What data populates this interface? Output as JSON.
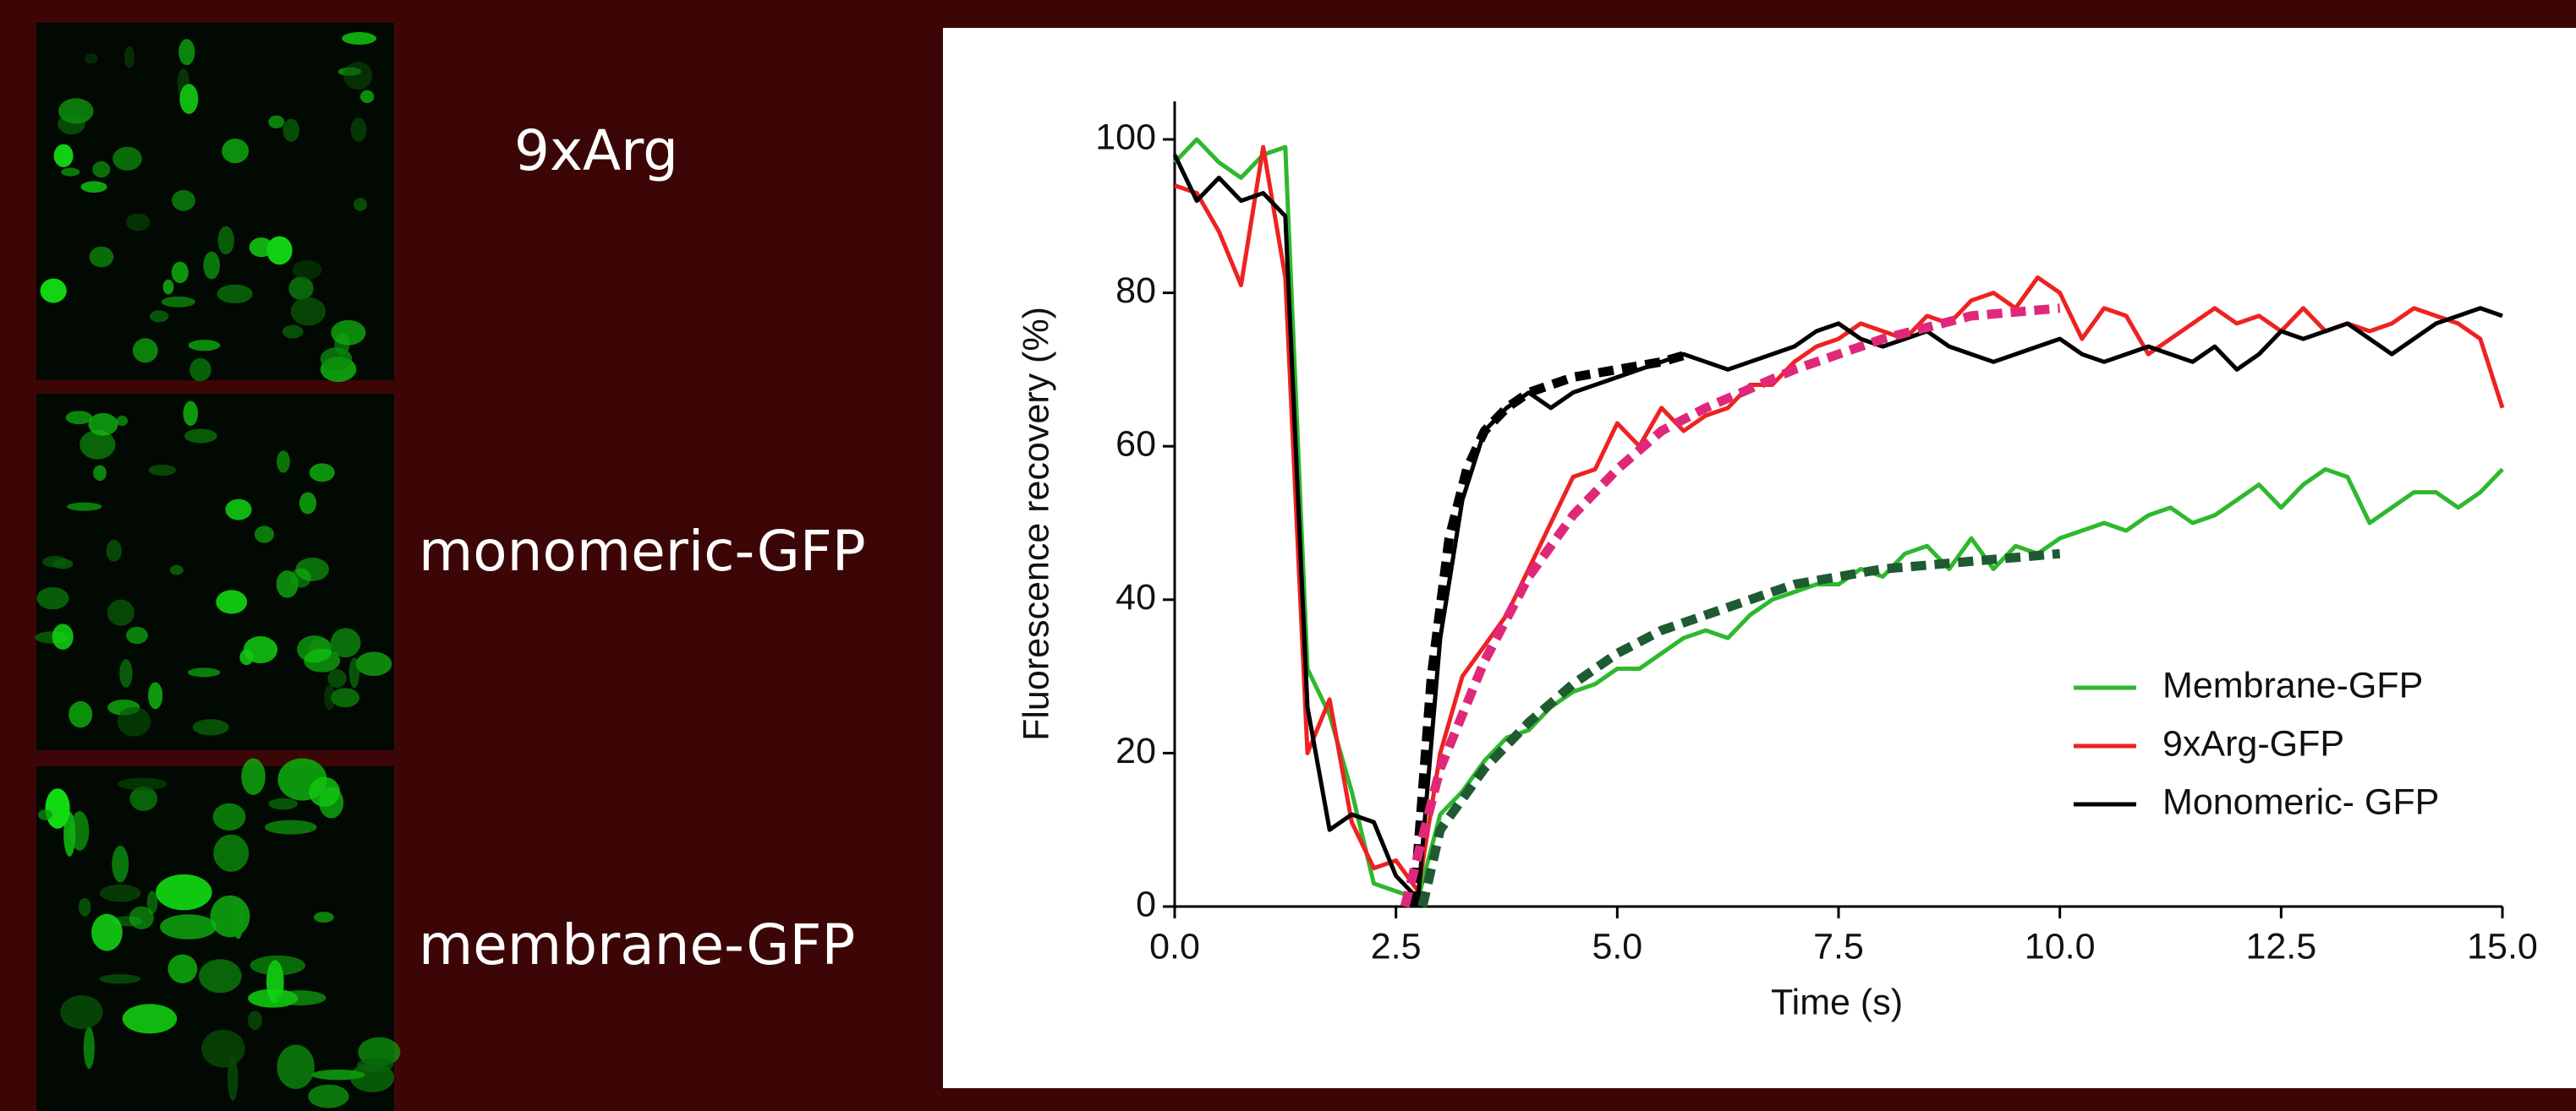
{
  "labels": [
    "9xArg",
    "monomeric-GFP",
    "membrane-GFP"
  ],
  "chart_data": {
    "type": "line",
    "xlabel": "Time (s)",
    "ylabel": "Fluorescence recovery  (%)",
    "xlim": [
      0,
      15
    ],
    "ylim": [
      0,
      100
    ],
    "xticks": [
      {
        "value": 0,
        "label": "0.0"
      },
      {
        "value": 2.5,
        "label": "2.5"
      },
      {
        "value": 5,
        "label": "5.0"
      },
      {
        "value": 7.5,
        "label": "7.5"
      },
      {
        "value": 10,
        "label": "10.0"
      },
      {
        "value": 12.5,
        "label": "12.5"
      },
      {
        "value": 15,
        "label": "15.0"
      }
    ],
    "yticks": [
      0,
      20,
      40,
      60,
      80,
      100
    ],
    "legend": "lower right",
    "x": [
      0,
      0.25,
      0.5,
      0.75,
      1,
      1.25,
      1.5,
      1.75,
      2,
      2.25,
      2.5,
      2.75,
      3,
      3.25,
      3.5,
      3.75,
      4,
      4.25,
      4.5,
      4.75,
      5,
      5.25,
      5.5,
      5.75,
      6,
      6.25,
      6.5,
      6.75,
      7,
      7.25,
      7.5,
      7.75,
      8,
      8.25,
      8.5,
      8.75,
      9,
      9.25,
      9.5,
      9.75,
      10,
      10.25,
      10.5,
      10.75,
      11,
      11.25,
      11.5,
      11.75,
      12,
      12.25,
      12.5,
      12.75,
      13,
      13.25,
      13.5,
      13.75,
      14,
      14.25,
      14.5,
      14.75,
      15
    ],
    "series": [
      {
        "name": "Membrane-GFP",
        "color": "#2eb82e",
        "values": [
          97,
          100,
          97,
          95,
          98,
          99,
          31,
          25,
          15,
          3,
          2,
          1,
          12,
          15,
          19,
          22,
          23,
          26,
          28,
          29,
          31,
          31,
          33,
          35,
          36,
          35,
          38,
          40,
          41,
          42,
          42,
          44,
          43,
          46,
          47,
          44,
          48,
          44,
          47,
          46,
          48,
          49,
          50,
          49,
          51,
          52,
          50,
          51,
          53,
          55,
          52,
          55,
          57,
          56,
          50,
          52,
          54,
          54,
          52,
          54,
          57
        ]
      },
      {
        "name": "9xArg-GFP",
        "color": "#ee2222",
        "values": [
          94,
          93,
          88,
          81,
          99,
          82,
          20,
          27,
          11,
          5,
          6,
          2,
          20,
          30,
          34,
          38,
          44,
          50,
          56,
          57,
          63,
          60,
          65,
          62,
          64,
          65,
          68,
          68,
          71,
          73,
          74,
          76,
          75,
          74,
          77,
          76,
          79,
          80,
          78,
          82,
          80,
          74,
          78,
          77,
          72,
          74,
          76,
          78,
          76,
          77,
          75,
          78,
          75,
          76,
          75,
          76,
          78,
          77,
          76,
          74,
          65
        ]
      },
      {
        "name": "Monomeric- GFP",
        "color": "#000000",
        "values": [
          98,
          92,
          95,
          92,
          93,
          90,
          26,
          10,
          12,
          11,
          4,
          1,
          35,
          53,
          62,
          65,
          67,
          65,
          67,
          68,
          69,
          70,
          71,
          72,
          71,
          70,
          71,
          72,
          73,
          75,
          76,
          74,
          73,
          74,
          75,
          73,
          72,
          71,
          72,
          73,
          74,
          72,
          71,
          72,
          73,
          72,
          71,
          73,
          70,
          72,
          75,
          74,
          75,
          76,
          74,
          72,
          74,
          76,
          77,
          78,
          77
        ]
      },
      {
        "color": "#000000",
        "dashed": true,
        "x": [
          2.7,
          2.9,
          3.1,
          3.3,
          3.5,
          3.75,
          4,
          4.5,
          5,
          5.5,
          5.8
        ],
        "values": [
          0,
          30,
          48,
          57,
          62,
          65,
          67,
          69,
          70,
          71,
          72
        ]
      },
      {
        "color": "#e0287a",
        "dashed": true,
        "x": [
          2.6,
          3,
          3.5,
          4,
          4.5,
          5,
          5.5,
          6,
          7,
          8,
          9,
          10
        ],
        "values": [
          0,
          18,
          32,
          43,
          51,
          57,
          62,
          65,
          70,
          74,
          77,
          78
        ]
      },
      {
        "color": "#1e5a32",
        "dashed": true,
        "x": [
          2.8,
          3,
          3.5,
          4,
          4.5,
          5,
          5.5,
          6,
          7,
          8,
          9,
          10
        ],
        "values": [
          0,
          10,
          18,
          24,
          29,
          33,
          36,
          38,
          42,
          44,
          45,
          46
        ]
      }
    ]
  }
}
